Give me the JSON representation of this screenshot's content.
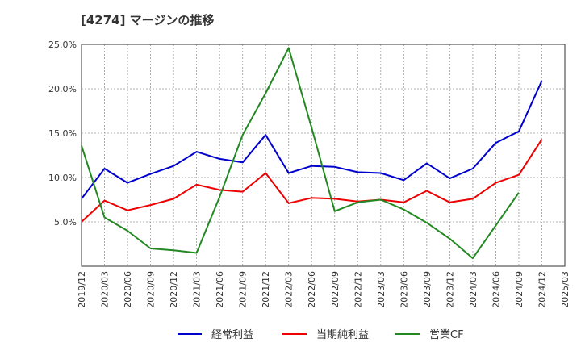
{
  "chart_data": {
    "type": "line",
    "title": "[4274]  マージンの推移",
    "x": [
      "2019/12",
      "2020/03",
      "2020/06",
      "2020/09",
      "2020/12",
      "2021/03",
      "2021/06",
      "2021/09",
      "2021/12",
      "2022/03",
      "2022/06",
      "2022/09",
      "2022/12",
      "2023/03",
      "2023/06",
      "2023/09",
      "2023/12",
      "2024/03",
      "2024/06",
      "2024/09",
      "2024/12",
      "2025/03"
    ],
    "ylim": [
      0.0,
      25.0
    ],
    "yticks": [
      "5.0%",
      "10.0%",
      "15.0%",
      "20.0%",
      "25.0%"
    ],
    "ytick_values": [
      5,
      10,
      15,
      20,
      25
    ],
    "grid": true,
    "legend_position": "bottom",
    "series": [
      {
        "name": "経常利益",
        "color": "#0000cc",
        "values": [
          7.6,
          11.0,
          9.4,
          10.4,
          11.3,
          12.9,
          12.1,
          11.7,
          14.8,
          10.5,
          11.3,
          11.2,
          10.6,
          10.5,
          9.7,
          11.6,
          9.9,
          11.0,
          13.9,
          15.2,
          20.9,
          null
        ]
      },
      {
        "name": "当期純利益",
        "color": "#ee0000",
        "values": [
          5.0,
          7.4,
          6.3,
          6.9,
          7.6,
          9.2,
          8.6,
          8.4,
          10.5,
          7.1,
          7.7,
          7.6,
          7.3,
          7.5,
          7.2,
          8.5,
          7.2,
          7.6,
          9.4,
          10.3,
          14.3,
          null
        ]
      },
      {
        "name": "営業CF",
        "color": "#228822",
        "values": [
          13.6,
          5.5,
          4.0,
          2.0,
          1.8,
          1.5,
          7.8,
          14.8,
          19.5,
          24.6,
          15.6,
          6.2,
          7.2,
          7.5,
          6.4,
          4.9,
          3.1,
          0.9,
          4.6,
          8.3,
          null,
          null
        ]
      }
    ]
  }
}
